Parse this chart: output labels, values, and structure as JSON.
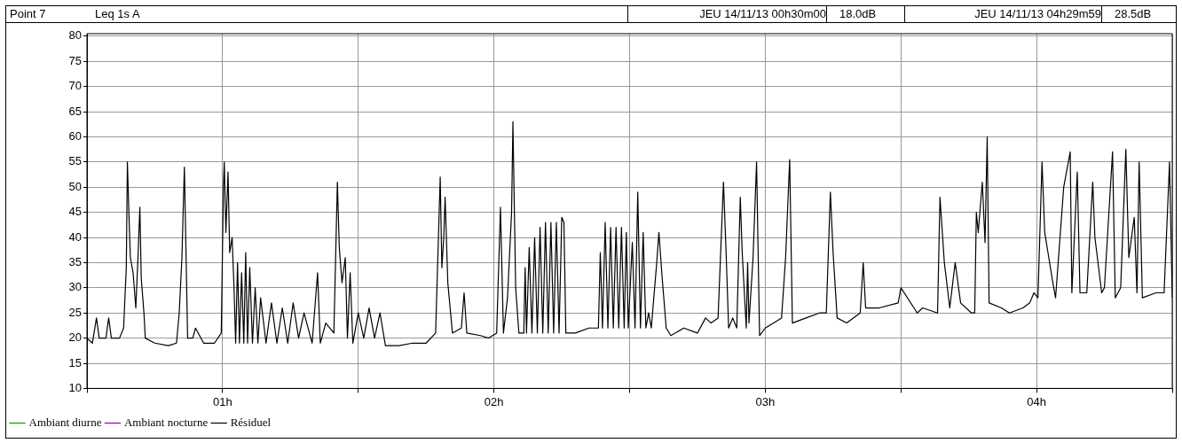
{
  "chart_data": {
    "type": "line",
    "annotations": [
      "Point 7",
      "Leq 1s  A",
      "JEU 14/11/13 00h30m00",
      "18.0dB",
      "JEU 14/11/13 04h29m59",
      "28.5dB"
    ],
    "xlim": [
      0.5,
      4.5
    ],
    "xticks": [
      {
        "value": 0.5,
        "label": null
      },
      {
        "value": 1,
        "label": "01h"
      },
      {
        "value": 1.5,
        "label": null
      },
      {
        "value": 2,
        "label": "02h"
      },
      {
        "value": 2.5,
        "label": null
      },
      {
        "value": 3,
        "label": "03h"
      },
      {
        "value": 3.5,
        "label": null
      },
      {
        "value": 4,
        "label": "04h"
      },
      {
        "value": 4.5,
        "label": null
      }
    ],
    "ylim": [
      10,
      80.5
    ],
    "yticks": [
      10,
      15,
      20,
      25,
      30,
      35,
      40,
      45,
      50,
      55,
      60,
      65,
      70,
      75,
      80
    ],
    "grid": true,
    "legend": "bottom left",
    "marker": "none",
    "line_style": "solid",
    "series": [
      {
        "name": "Ambiant diurne",
        "color": "#00a000"
      },
      {
        "name": "Ambiant nocturne",
        "color": "#a000a0"
      },
      {
        "name": "Résiduel",
        "color": "#000000",
        "x": [
          0.5,
          0.52,
          0.535,
          0.545,
          0.57,
          0.58,
          0.59,
          0.62,
          0.635,
          0.645,
          0.649,
          0.655,
          0.66,
          0.67,
          0.68,
          0.688,
          0.695,
          0.7,
          0.71,
          0.715,
          0.75,
          0.8,
          0.83,
          0.84,
          0.85,
          0.859,
          0.864,
          0.871,
          0.89,
          0.9,
          0.93,
          0.97,
          0.995,
          1.003,
          1.006,
          1.012,
          1.02,
          1.026,
          1.035,
          1.042,
          1.048,
          1.055,
          1.062,
          1.07,
          1.078,
          1.085,
          1.092,
          1.1,
          1.11,
          1.12,
          1.13,
          1.14,
          1.16,
          1.18,
          1.2,
          1.22,
          1.24,
          1.26,
          1.28,
          1.3,
          1.33,
          1.35,
          1.36,
          1.38,
          1.41,
          1.423,
          1.43,
          1.44,
          1.452,
          1.46,
          1.47,
          1.48,
          1.5,
          1.52,
          1.54,
          1.56,
          1.58,
          1.6,
          1.65,
          1.7,
          1.75,
          1.785,
          1.802,
          1.808,
          1.815,
          1.82,
          1.83,
          1.847,
          1.88,
          1.89,
          1.9,
          1.95,
          1.98,
          2.01,
          2.024,
          2.035,
          2.05,
          2.065,
          2.07,
          2.08,
          2.092,
          2.11,
          2.115,
          2.12,
          2.13,
          2.14,
          2.15,
          2.16,
          2.17,
          2.18,
          2.19,
          2.2,
          2.21,
          2.22,
          2.23,
          2.24,
          2.25,
          2.258,
          2.265,
          2.3,
          2.35,
          2.385,
          2.392,
          2.4,
          2.41,
          2.42,
          2.43,
          2.44,
          2.45,
          2.46,
          2.47,
          2.48,
          2.488,
          2.495,
          2.51,
          2.52,
          2.53,
          2.54,
          2.55,
          2.56,
          2.57,
          2.58,
          2.6,
          2.608,
          2.62,
          2.635,
          2.652,
          2.7,
          2.75,
          2.78,
          2.8,
          2.826,
          2.846,
          2.855,
          2.865,
          2.88,
          2.895,
          2.908,
          2.915,
          2.93,
          2.935,
          2.94,
          2.955,
          2.968,
          2.979,
          3.0,
          3.06,
          3.075,
          3.09,
          3.1,
          3.15,
          3.2,
          3.225,
          3.24,
          3.25,
          3.265,
          3.3,
          3.35,
          3.361,
          3.37,
          3.42,
          3.49,
          3.5,
          3.56,
          3.58,
          3.635,
          3.644,
          3.66,
          3.68,
          3.7,
          3.72,
          3.76,
          3.772,
          3.778,
          3.785,
          3.8,
          3.81,
          3.818,
          3.825,
          3.87,
          3.9,
          3.95,
          3.975,
          3.99,
          4.005,
          4.02,
          4.03,
          4.045,
          4.06,
          4.07,
          4.1,
          4.124,
          4.13,
          4.15,
          4.16,
          4.185,
          4.207,
          4.215,
          4.24,
          4.25,
          4.28,
          4.29,
          4.31,
          4.329,
          4.34,
          4.36,
          4.37,
          4.378,
          4.39,
          4.44,
          4.47,
          4.49,
          4.5
        ],
        "values": [
          20,
          19,
          24,
          20,
          20,
          24,
          20,
          20,
          22,
          34,
          55,
          44,
          36,
          33,
          26,
          36,
          46,
          32,
          25,
          20,
          19,
          18.5,
          19,
          25,
          36,
          54,
          40,
          20,
          20,
          22,
          19,
          19,
          21,
          50,
          55,
          41,
          53,
          37,
          40,
          30,
          19,
          35,
          19,
          33,
          19,
          37,
          19,
          34,
          19,
          30,
          19,
          28,
          19,
          27,
          19,
          26,
          19,
          27,
          20,
          25,
          19,
          33,
          19,
          23,
          21,
          51,
          38,
          31,
          36,
          20,
          33,
          19,
          25,
          20,
          26,
          20,
          25,
          18.5,
          18.5,
          19,
          19,
          21,
          52,
          34,
          40,
          48,
          31,
          21,
          22,
          29,
          21,
          20.5,
          20,
          21,
          46,
          21,
          28,
          45,
          63,
          30,
          21,
          21,
          34,
          21,
          38,
          21,
          40,
          21,
          42,
          21,
          43,
          21,
          43,
          21,
          43,
          21,
          44,
          43,
          21,
          21,
          22,
          22,
          37,
          22,
          43,
          22,
          42,
          22,
          42,
          22,
          42,
          22,
          41,
          22,
          39,
          22,
          49,
          22,
          41,
          22,
          25,
          22,
          35,
          41,
          32,
          22,
          20.5,
          22,
          21,
          24,
          23,
          24,
          51,
          38,
          22,
          24,
          22,
          48,
          37,
          22,
          35,
          23,
          36,
          55,
          20.5,
          22,
          24,
          36,
          55.5,
          23,
          24,
          25,
          25,
          49,
          37,
          24,
          23,
          25,
          35,
          26,
          26,
          27,
          30,
          25,
          26,
          25,
          48,
          35,
          26,
          35,
          27,
          25,
          25,
          45,
          41,
          51,
          39,
          60,
          27,
          26,
          25,
          26,
          27,
          29,
          28,
          55,
          41,
          36,
          31,
          28,
          50,
          57,
          29,
          53,
          29,
          29,
          51,
          40,
          29,
          30,
          57,
          28,
          30,
          57.5,
          36,
          44,
          29,
          55,
          28,
          29,
          29,
          55,
          28
        ]
      }
    ]
  }
}
